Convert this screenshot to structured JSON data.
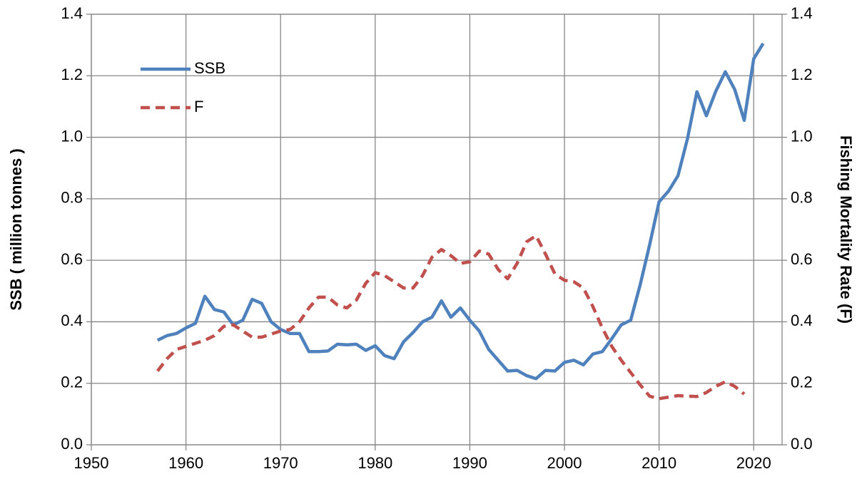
{
  "chart_data": {
    "type": "line",
    "y_label": "SSB ( million tonnes )",
    "y2_label": "Fishing Mortality Rate (F)",
    "x": [
      1957,
      1958,
      1959,
      1960,
      1961,
      1962,
      1963,
      1964,
      1965,
      1966,
      1967,
      1968,
      1969,
      1970,
      1971,
      1972,
      1973,
      1974,
      1975,
      1976,
      1977,
      1978,
      1979,
      1980,
      1981,
      1982,
      1983,
      1984,
      1985,
      1986,
      1987,
      1988,
      1989,
      1990,
      1991,
      1992,
      1993,
      1994,
      1995,
      1996,
      1997,
      1998,
      1999,
      2000,
      2001,
      2002,
      2003,
      2004,
      2005,
      2006,
      2007,
      2008,
      2009,
      2010,
      2011,
      2012,
      2013,
      2014,
      2015,
      2016,
      2017,
      2018,
      2019,
      2020,
      2021
    ],
    "series": [
      {
        "name": "SSB",
        "color": "#4f81bd",
        "dash": false,
        "axis": "y",
        "values": [
          0.34,
          0.355,
          0.362,
          0.38,
          0.395,
          0.483,
          0.44,
          0.432,
          0.39,
          0.405,
          0.473,
          0.46,
          0.4,
          0.375,
          0.362,
          0.362,
          0.303,
          0.303,
          0.305,
          0.327,
          0.325,
          0.327,
          0.307,
          0.322,
          0.29,
          0.28,
          0.335,
          0.365,
          0.4,
          0.415,
          0.468,
          0.415,
          0.445,
          0.405,
          0.37,
          0.31,
          0.275,
          0.24,
          0.242,
          0.225,
          0.215,
          0.242,
          0.24,
          0.268,
          0.275,
          0.26,
          0.295,
          0.303,
          0.345,
          0.39,
          0.405,
          0.52,
          0.65,
          0.79,
          0.825,
          0.875,
          0.995,
          1.148,
          1.07,
          1.15,
          1.213,
          1.155,
          1.055,
          1.255,
          1.305
        ]
      },
      {
        "name": "F",
        "color": "#c0504d",
        "dash": true,
        "axis": "y2",
        "values": [
          0.24,
          0.28,
          0.31,
          0.32,
          0.33,
          0.34,
          0.355,
          0.385,
          0.39,
          0.37,
          0.35,
          0.35,
          0.36,
          0.37,
          0.375,
          0.4,
          0.445,
          0.48,
          0.48,
          0.455,
          0.445,
          0.47,
          0.525,
          0.56,
          0.55,
          0.53,
          0.51,
          0.51,
          0.55,
          0.61,
          0.635,
          0.615,
          0.59,
          0.595,
          0.63,
          0.62,
          0.57,
          0.54,
          0.59,
          0.66,
          0.68,
          0.62,
          0.555,
          0.535,
          0.53,
          0.51,
          0.45,
          0.38,
          0.32,
          0.275,
          0.235,
          0.195,
          0.158,
          0.15,
          0.155,
          0.16,
          0.158,
          0.157,
          0.17,
          0.19,
          0.205,
          0.19,
          0.165,
          null,
          null
        ]
      }
    ],
    "xlim": [
      1950,
      2023
    ],
    "xticks": [
      1950,
      1960,
      1970,
      1980,
      1990,
      2000,
      2010,
      2020
    ],
    "ylim": [
      0,
      1.4
    ],
    "yticks": [
      {
        "value": 0,
        "label": "0.0"
      },
      0.2,
      0.4,
      0.6,
      0.8,
      {
        "value": 1,
        "label": "1.0"
      },
      1.2,
      1.4
    ],
    "y2lim": [
      0,
      1.4
    ],
    "y2ticks": [
      {
        "value": 0,
        "label": "0.0"
      },
      0.2,
      0.4,
      0.6,
      0.8,
      {
        "value": 1,
        "label": "1.0"
      },
      1.2,
      1.4
    ],
    "grid": true,
    "legend": "upper-left"
  }
}
